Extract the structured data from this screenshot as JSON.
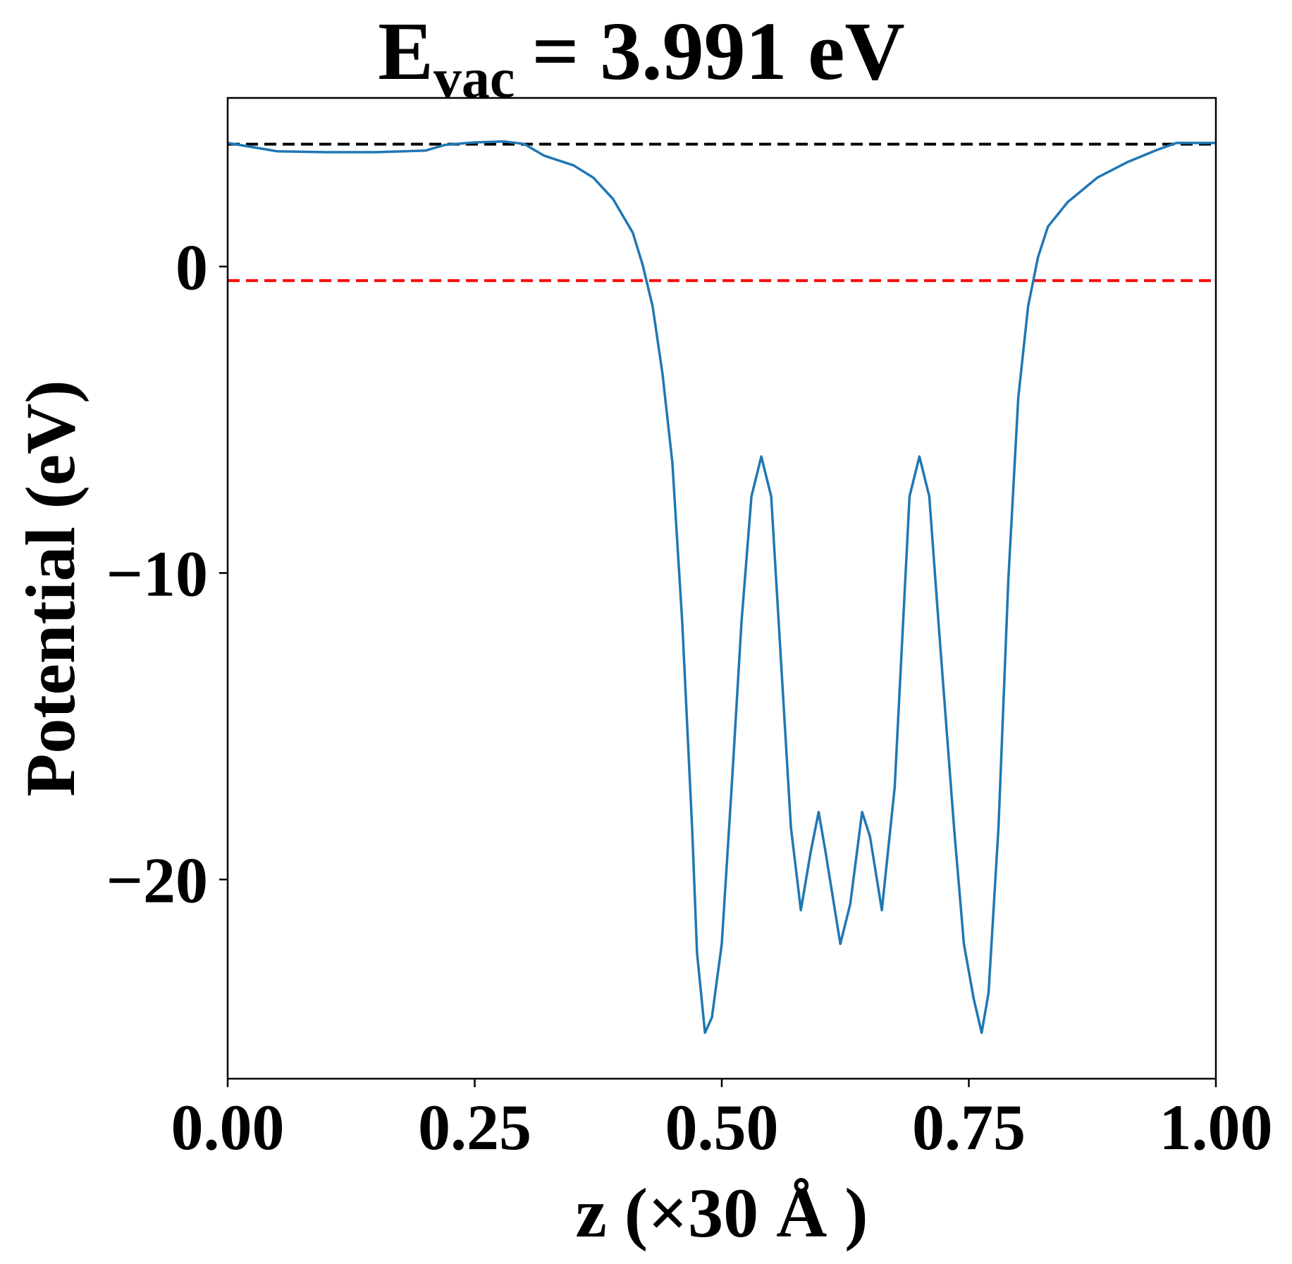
{
  "chart_data": {
    "type": "line",
    "title": {
      "main": "E",
      "subscript": "vac",
      "rest": "= 3.991 eV"
    },
    "xlabel": "z (×30 Å )",
    "ylabel": "Potential (eV)",
    "xlim": [
      0,
      1
    ],
    "ylim": [
      -26.5,
      5.5
    ],
    "xticks": [
      {
        "value": 0,
        "label": "0.00"
      },
      {
        "value": 0.25,
        "label": "0.25"
      },
      {
        "value": 0.5,
        "label": "0.50"
      },
      {
        "value": 0.75,
        "label": "0.75"
      },
      {
        "value": 1,
        "label": "1.00"
      }
    ],
    "yticks": [
      {
        "value": -20,
        "label": "−20"
      },
      {
        "value": -10,
        "label": "−10"
      },
      0
    ],
    "hlines": [
      {
        "y": 3.991,
        "color": "#000000"
      },
      {
        "y": -0.46,
        "color": "#ff0000"
      }
    ],
    "x": [
      0,
      0.05,
      0.1,
      0.15,
      0.2,
      0.22,
      0.25,
      0.28,
      0.3,
      0.32,
      0.35,
      0.37,
      0.39,
      0.41,
      0.42,
      0.43,
      0.44,
      0.45,
      0.46,
      0.47,
      0.475,
      0.483,
      0.49,
      0.5,
      0.51,
      0.52,
      0.53,
      0.54,
      0.55,
      0.56,
      0.57,
      0.58,
      0.59,
      0.598,
      0.605,
      0.62,
      0.63,
      0.642,
      0.65,
      0.662,
      0.675,
      0.69,
      0.7,
      0.71,
      0.72,
      0.735,
      0.745,
      0.755,
      0.763,
      0.77,
      0.78,
      0.79,
      0.8,
      0.81,
      0.82,
      0.83,
      0.85,
      0.88,
      0.91,
      0.94,
      0.96,
      1.0
    ],
    "series": [
      {
        "color": "#1f77b4",
        "values": [
          4.03,
          3.76,
          3.73,
          3.73,
          3.78,
          3.97,
          4.05,
          4.08,
          4.0,
          3.62,
          3.3,
          2.9,
          2.2,
          1.1,
          0.05,
          -1.3,
          -3.5,
          -6.4,
          -11.6,
          -18.3,
          -22.4,
          -25.0,
          -24.5,
          -22.1,
          -17.0,
          -11.6,
          -7.5,
          -6.2,
          -7.5,
          -12.9,
          -18.3,
          -21.0,
          -19.1,
          -17.8,
          -19.1,
          -22.1,
          -20.8,
          -17.8,
          -18.6,
          -21.0,
          -17.0,
          -7.5,
          -6.2,
          -7.5,
          -11.9,
          -18.3,
          -22.1,
          -23.9,
          -25.0,
          -23.7,
          -18.3,
          -10.2,
          -4.3,
          -1.3,
          0.3,
          1.3,
          2.1,
          2.9,
          3.4,
          3.8,
          4.03,
          4.03
        ]
      }
    ]
  }
}
